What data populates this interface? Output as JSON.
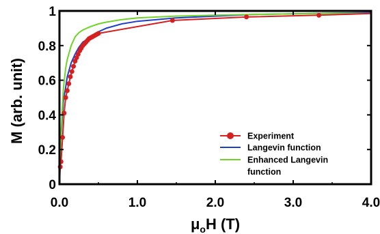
{
  "chart_data": {
    "type": "line",
    "xlabel_main": "μ",
    "xlabel_sub": "o",
    "xlabel_rest": "H (T)",
    "ylabel": "M (arb. unit)",
    "xlim": [
      0,
      4.0
    ],
    "ylim": [
      0,
      1.0
    ],
    "x_ticks": [
      0.0,
      1.0,
      2.0,
      3.0,
      4.0
    ],
    "x_tick_labels": [
      "0.0",
      "1.0",
      "2.0",
      "3.0",
      "4.0"
    ],
    "y_ticks": [
      0,
      0.2,
      0.4,
      0.6,
      0.8,
      1.0
    ],
    "y_tick_labels": [
      "0",
      "0.2",
      "0.4",
      "0.6",
      "0.8",
      "1"
    ],
    "grid": false,
    "legend_position": "center-right",
    "series": [
      {
        "name": "Experiment",
        "color": "#d42020",
        "marker": "circle",
        "x": [
          0.01,
          0.02,
          0.04,
          0.06,
          0.08,
          0.1,
          0.12,
          0.14,
          0.16,
          0.18,
          0.2,
          0.22,
          0.24,
          0.26,
          0.28,
          0.3,
          0.32,
          0.34,
          0.36,
          0.38,
          0.4,
          0.42,
          0.44,
          0.46,
          0.48,
          0.5,
          1.45,
          2.4,
          3.33
        ],
        "y": [
          0.1,
          0.13,
          0.27,
          0.41,
          0.5,
          0.54,
          0.58,
          0.62,
          0.65,
          0.68,
          0.71,
          0.73,
          0.75,
          0.77,
          0.785,
          0.8,
          0.81,
          0.82,
          0.83,
          0.84,
          0.845,
          0.85,
          0.855,
          0.86,
          0.865,
          0.87,
          0.945,
          0.965,
          0.975
        ],
        "line_x": [
          0,
          0.01,
          0.02,
          0.04,
          0.06,
          0.08,
          0.1,
          0.12,
          0.14,
          0.16,
          0.18,
          0.2,
          0.22,
          0.24,
          0.26,
          0.28,
          0.3,
          0.32,
          0.34,
          0.36,
          0.38,
          0.4,
          0.42,
          0.44,
          0.46,
          0.48,
          0.5,
          1.45,
          2.4,
          3.33,
          4.0
        ],
        "line_y": [
          0.0,
          0.1,
          0.13,
          0.27,
          0.41,
          0.5,
          0.54,
          0.58,
          0.62,
          0.65,
          0.68,
          0.71,
          0.73,
          0.75,
          0.77,
          0.785,
          0.8,
          0.81,
          0.82,
          0.83,
          0.84,
          0.845,
          0.85,
          0.855,
          0.86,
          0.865,
          0.87,
          0.945,
          0.965,
          0.975,
          0.985
        ]
      },
      {
        "name": "Langevin function",
        "color": "#1f3fc8",
        "marker": "none",
        "x": [
          0,
          0.02,
          0.05,
          0.08,
          0.1,
          0.15,
          0.2,
          0.25,
          0.3,
          0.4,
          0.5,
          0.6,
          0.8,
          1.0,
          1.5,
          2.0,
          2.5,
          3.0,
          3.5,
          4.0
        ],
        "y": [
          0.0,
          0.28,
          0.48,
          0.56,
          0.62,
          0.7,
          0.75,
          0.79,
          0.82,
          0.85,
          0.88,
          0.9,
          0.925,
          0.94,
          0.96,
          0.97,
          0.98,
          0.983,
          0.987,
          0.99
        ]
      },
      {
        "name": "Enhanced Langevin function",
        "color": "#6fd426",
        "marker": "none",
        "x": [
          0,
          0.02,
          0.05,
          0.08,
          0.1,
          0.15,
          0.2,
          0.25,
          0.3,
          0.4,
          0.5,
          0.6,
          0.8,
          1.0,
          1.5,
          2.0,
          2.5,
          3.0,
          3.5,
          4.0
        ],
        "y": [
          0.0,
          0.3,
          0.55,
          0.67,
          0.72,
          0.8,
          0.85,
          0.875,
          0.89,
          0.91,
          0.925,
          0.935,
          0.95,
          0.96,
          0.97,
          0.975,
          0.98,
          0.983,
          0.985,
          0.985
        ]
      }
    ],
    "legend": [
      {
        "label": "Experiment",
        "color": "#d42020",
        "marker": "circle"
      },
      {
        "label": "Langevin function",
        "color": "#1f3fc8",
        "marker": "none"
      },
      {
        "label": "Enhanced Langevin",
        "label_line2": "function",
        "color": "#6fd426",
        "marker": "none"
      }
    ]
  }
}
